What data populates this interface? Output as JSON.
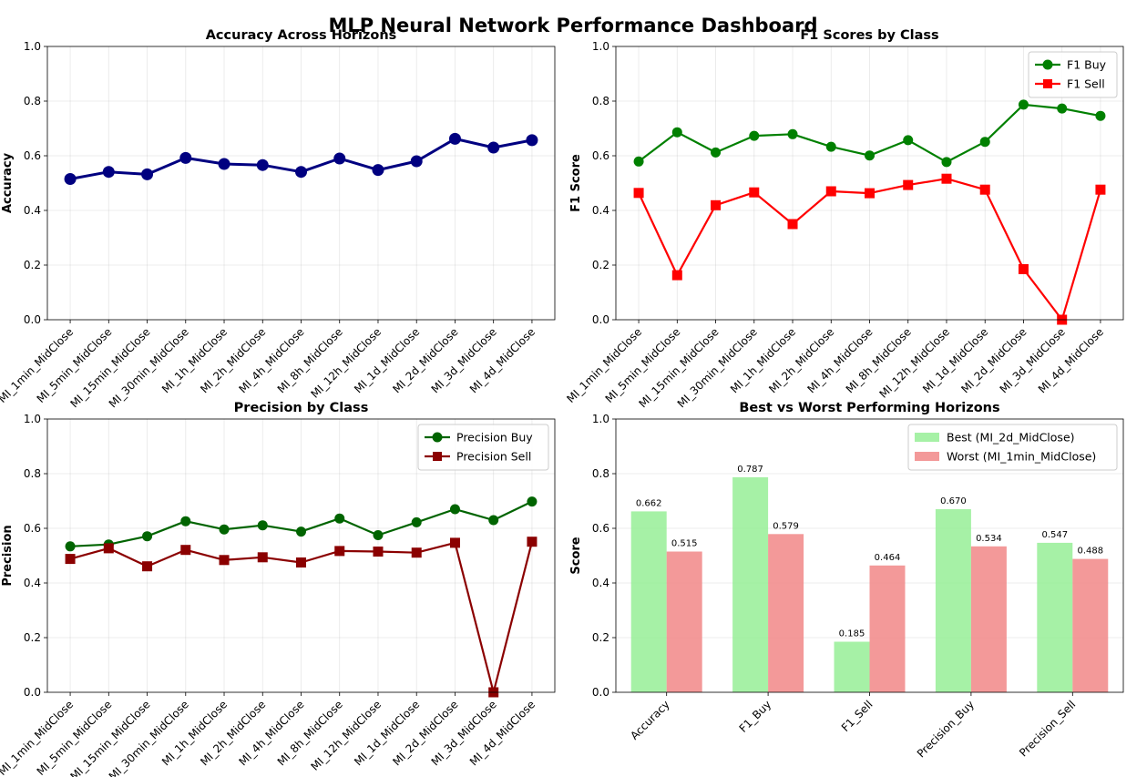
{
  "suptitle": "MLP Neural Network Performance Dashboard",
  "colors": {
    "accuracy": "#000080",
    "f1_buy": "#008000",
    "f1_sell": "#ff0000",
    "precision_buy": "#006400",
    "precision_sell": "#8b0000",
    "best_bar": "#90ee90",
    "worst_bar": "#f08080"
  },
  "chart_data": [
    {
      "id": "accuracy",
      "type": "line",
      "title": "Accuracy Across Horizons",
      "xlabel": "",
      "ylabel": "Accuracy",
      "ylim": [
        0,
        1
      ],
      "yticks": [
        "0.0",
        "0.2",
        "0.4",
        "0.6",
        "0.8",
        "1.0"
      ],
      "grid": true,
      "categories": [
        "MI_1min_MidClose",
        "MI_5min_MidClose",
        "MI_15min_MidClose",
        "MI_30min_MidClose",
        "MI_1h_MidClose",
        "MI_2h_MidClose",
        "MI_4h_MidClose",
        "MI_8h_MidClose",
        "MI_12h_MidClose",
        "MI_1d_MidClose",
        "MI_2d_MidClose",
        "MI_3d_MidClose",
        "MI_4d_MidClose"
      ],
      "series": [
        {
          "values": [
            0.515,
            0.541,
            0.532,
            0.592,
            0.57,
            0.566,
            0.541,
            0.59,
            0.548,
            0.58,
            0.662,
            0.63,
            0.657
          ],
          "color": "#000080",
          "marker": "circle"
        }
      ]
    },
    {
      "id": "f1",
      "type": "line",
      "title": "F1 Scores by Class",
      "xlabel": "",
      "ylabel": "F1 Score",
      "ylim": [
        0,
        1
      ],
      "yticks": [
        "0.0",
        "0.2",
        "0.4",
        "0.6",
        "0.8",
        "1.0"
      ],
      "grid": true,
      "legend": "top-right",
      "categories": [
        "MI_1min_MidClose",
        "MI_5min_MidClose",
        "MI_15min_MidClose",
        "MI_30min_MidClose",
        "MI_1h_MidClose",
        "MI_2h_MidClose",
        "MI_4h_MidClose",
        "MI_8h_MidClose",
        "MI_12h_MidClose",
        "MI_1d_MidClose",
        "MI_2d_MidClose",
        "MI_3d_MidClose",
        "MI_4d_MidClose"
      ],
      "series": [
        {
          "name": "F1 Buy",
          "values": [
            0.579,
            0.686,
            0.612,
            0.673,
            0.679,
            0.633,
            0.601,
            0.657,
            0.577,
            0.651,
            0.787,
            0.773,
            0.746
          ],
          "color": "#008000",
          "marker": "circle"
        },
        {
          "name": "F1 Sell",
          "values": [
            0.464,
            0.163,
            0.419,
            0.466,
            0.35,
            0.47,
            0.463,
            0.493,
            0.516,
            0.476,
            0.185,
            0.0,
            0.476
          ],
          "color": "#ff0000",
          "marker": "square"
        }
      ]
    },
    {
      "id": "precision",
      "type": "line",
      "title": "Precision by Class",
      "xlabel": "",
      "ylabel": "Precision",
      "ylim": [
        0,
        1
      ],
      "yticks": [
        "0.0",
        "0.2",
        "0.4",
        "0.6",
        "0.8",
        "1.0"
      ],
      "grid": true,
      "legend": "top-right",
      "categories": [
        "MI_1min_MidClose",
        "MI_5min_MidClose",
        "MI_15min_MidClose",
        "MI_30min_MidClose",
        "MI_1h_MidClose",
        "MI_2h_MidClose",
        "MI_4h_MidClose",
        "MI_8h_MidClose",
        "MI_12h_MidClose",
        "MI_1d_MidClose",
        "MI_2d_MidClose",
        "MI_3d_MidClose",
        "MI_4d_MidClose"
      ],
      "series": [
        {
          "name": "Precision Buy",
          "values": [
            0.534,
            0.541,
            0.571,
            0.626,
            0.596,
            0.611,
            0.588,
            0.636,
            0.575,
            0.622,
            0.67,
            0.63,
            0.698
          ],
          "color": "#006400",
          "marker": "circle"
        },
        {
          "name": "Precision Sell",
          "values": [
            0.488,
            0.527,
            0.461,
            0.521,
            0.484,
            0.494,
            0.475,
            0.517,
            0.515,
            0.511,
            0.547,
            0.0,
            0.551
          ],
          "color": "#8b0000",
          "marker": "square"
        }
      ]
    },
    {
      "id": "best_worst",
      "type": "bar",
      "title": "Best vs Worst Performing Horizons",
      "xlabel": "",
      "ylabel": "Score",
      "ylim": [
        0,
        1
      ],
      "yticks": [
        "0.0",
        "0.2",
        "0.4",
        "0.6",
        "0.8",
        "1.0"
      ],
      "grid": true,
      "legend": "top-right",
      "categories": [
        "Accuracy",
        "F1_Buy",
        "F1_Sell",
        "Precision_Buy",
        "Precision_Sell"
      ],
      "series": [
        {
          "name": "Best (MI_2d_MidClose)",
          "values": [
            0.662,
            0.787,
            0.185,
            0.67,
            0.547
          ],
          "labels": [
            "0.662",
            "0.787",
            "0.185",
            "0.670",
            "0.547"
          ],
          "color": "#90ee90"
        },
        {
          "name": "Worst (MI_1min_MidClose)",
          "values": [
            0.515,
            0.579,
            0.464,
            0.534,
            0.488
          ],
          "labels": [
            "0.515",
            "0.579",
            "0.464",
            "0.534",
            "0.488"
          ],
          "color": "#f08080"
        }
      ]
    }
  ]
}
